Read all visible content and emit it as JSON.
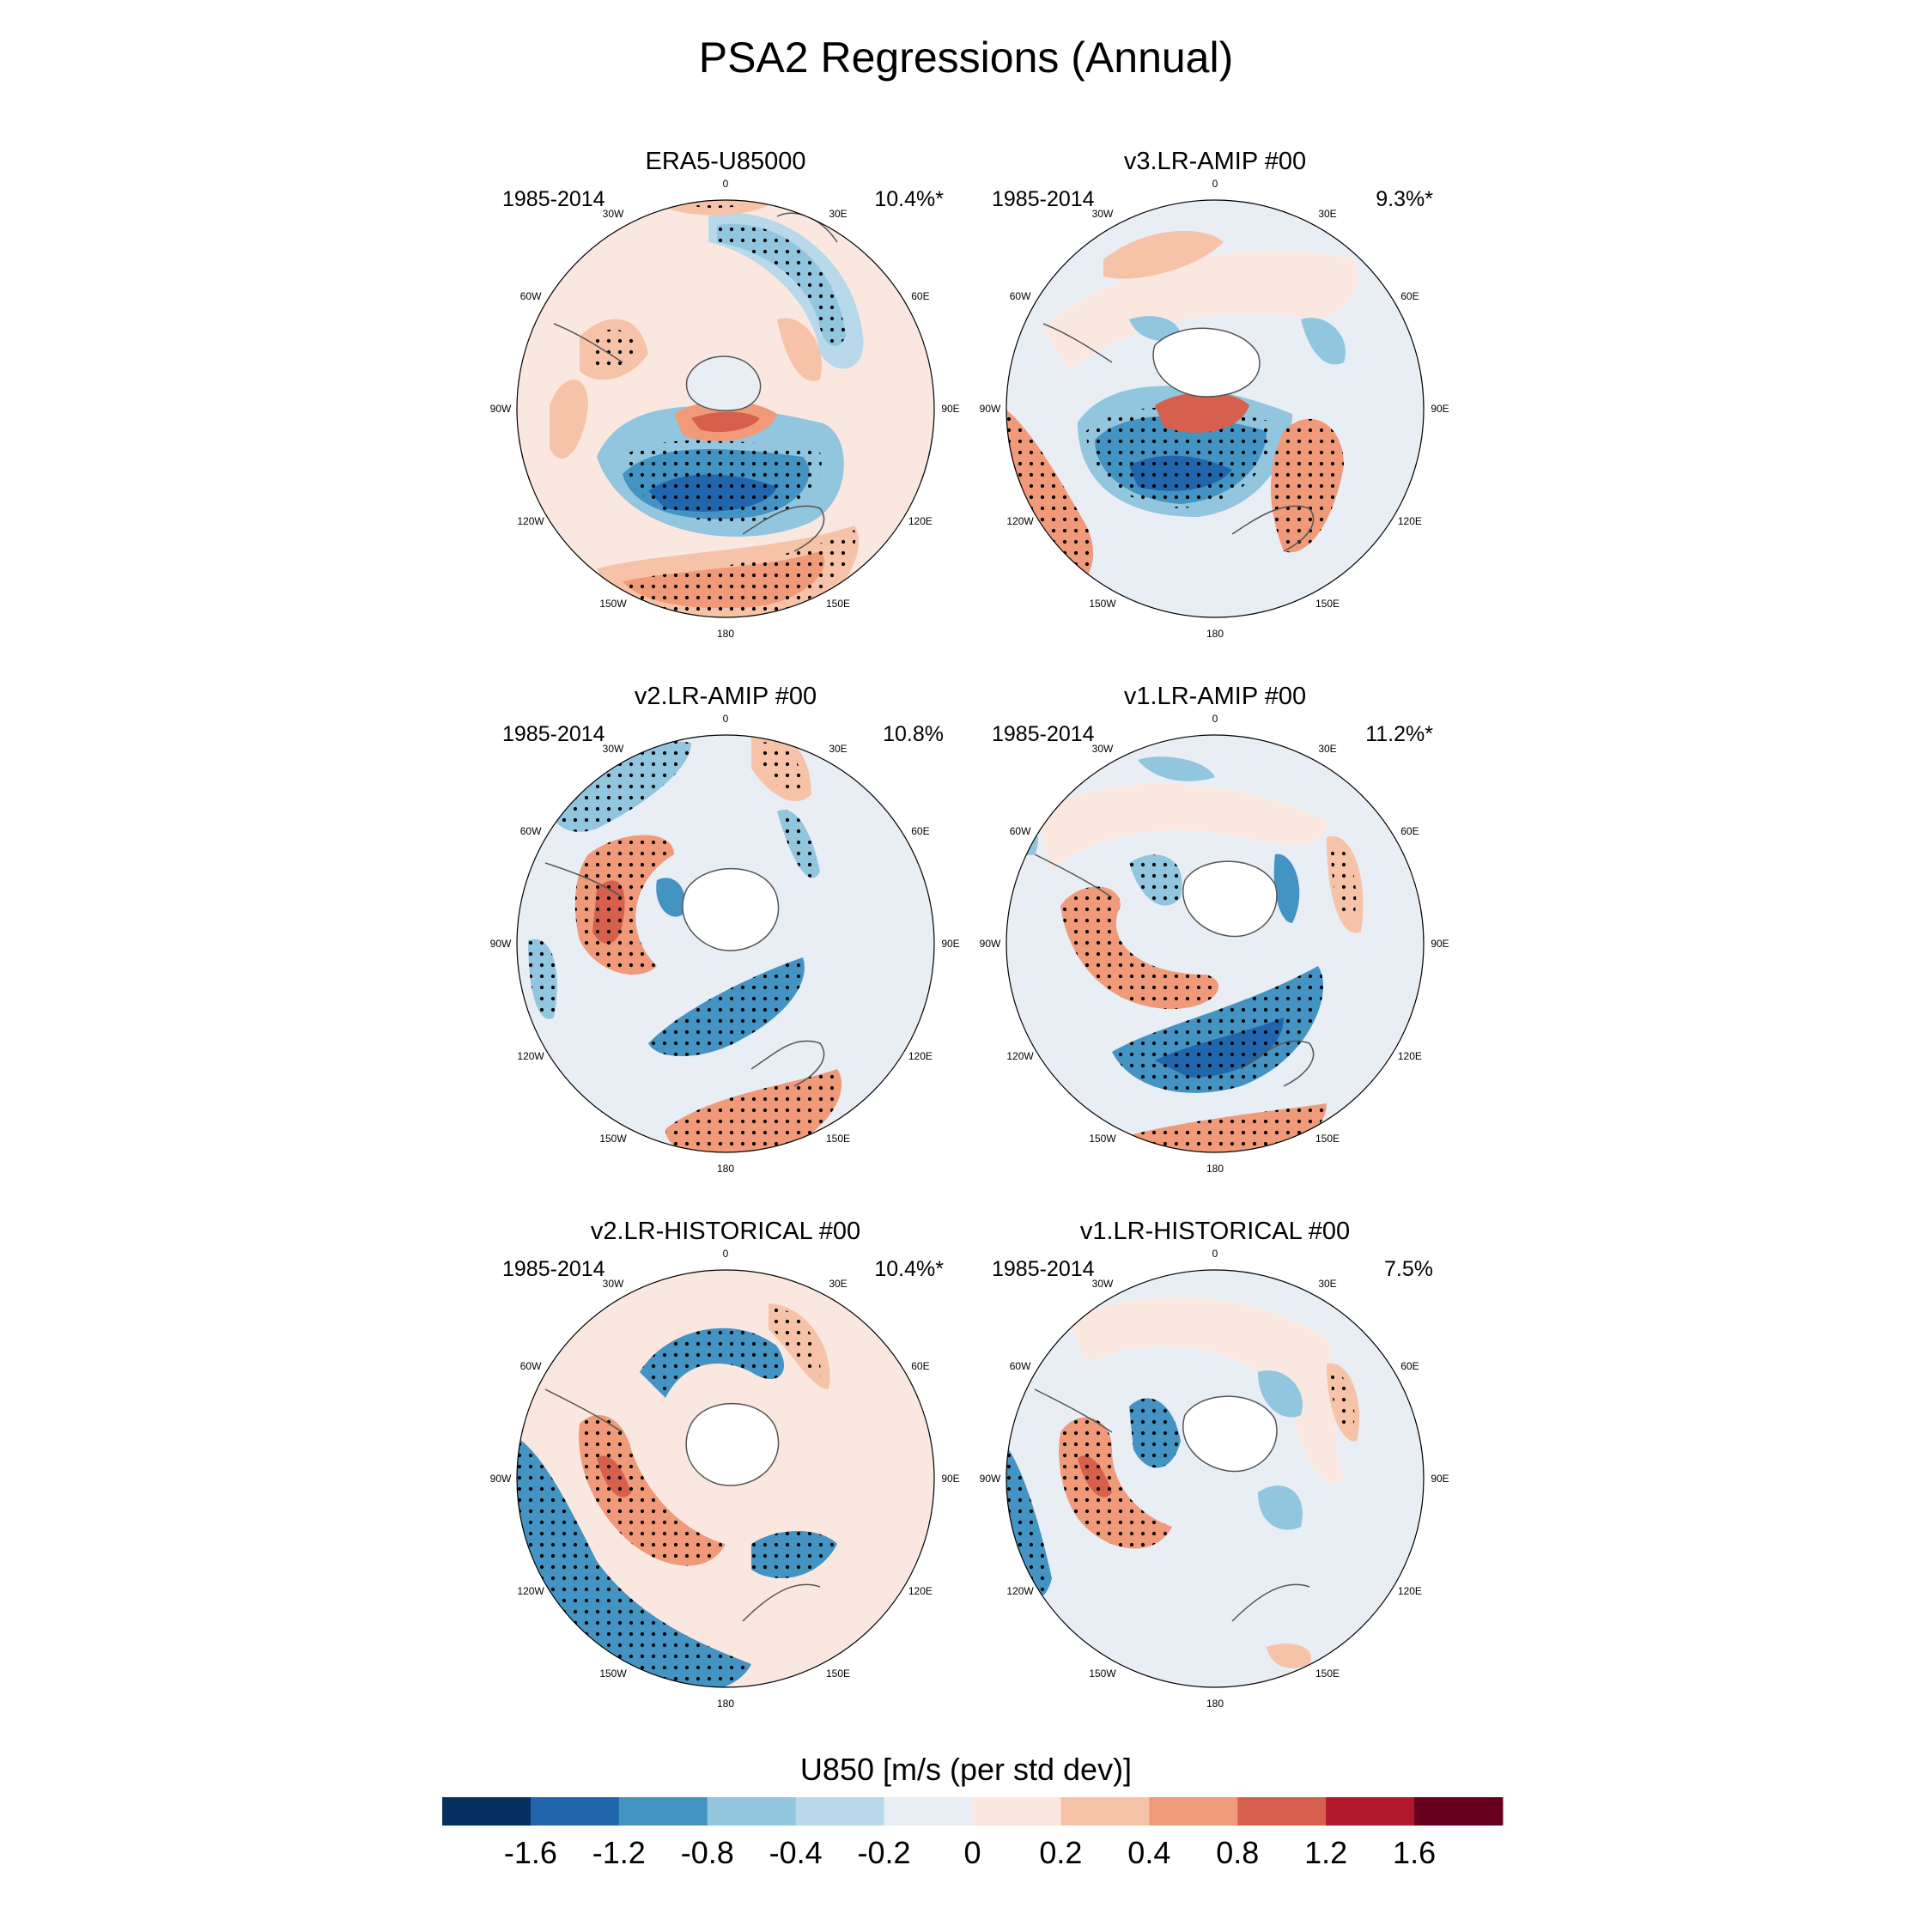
{
  "figure": {
    "title": "PSA2 Regressions (Annual)"
  },
  "colorbar": {
    "title": "U850 [m/s (per std dev)]",
    "labels": [
      "-1.6",
      "-1.2",
      "-0.8",
      "-0.4",
      "-0.2",
      "0",
      "0.2",
      "0.4",
      "0.8",
      "1.2",
      "1.6"
    ],
    "colors": [
      "#053061",
      "#2166ac",
      "#4393c3",
      "#92c5de",
      "#b8d9ea",
      "#e8eef4",
      "#fae8e0",
      "#f7c3a8",
      "#f09a7a",
      "#d6604d",
      "#b2182b",
      "#67001f"
    ]
  },
  "longitude_labels": [
    "0",
    "30E",
    "60E",
    "90E",
    "120E",
    "150E",
    "180",
    "150W",
    "120W",
    "90W",
    "60W",
    "30W"
  ],
  "chart_data": [
    {
      "type": "map",
      "panel": "ERA5-U85000",
      "period": "1985-2014",
      "percent_variance": "10.4%*"
    },
    {
      "type": "map",
      "panel": "v3.LR-AMIP  #00",
      "period": "1985-2014",
      "percent_variance": "9.3%*"
    },
    {
      "type": "map",
      "panel": "v2.LR-AMIP  #00",
      "period": "1985-2014",
      "percent_variance": "10.8%"
    },
    {
      "type": "map",
      "panel": "v1.LR-AMIP  #00",
      "period": "1985-2014",
      "percent_variance": "11.2%*"
    },
    {
      "type": "map",
      "panel": "v2.LR-HISTORICAL  #00",
      "period": "1985-2014",
      "percent_variance": "10.4%*"
    },
    {
      "type": "map",
      "panel": "v1.LR-HISTORICAL  #00",
      "period": "1985-2014",
      "percent_variance": "7.5%"
    }
  ]
}
